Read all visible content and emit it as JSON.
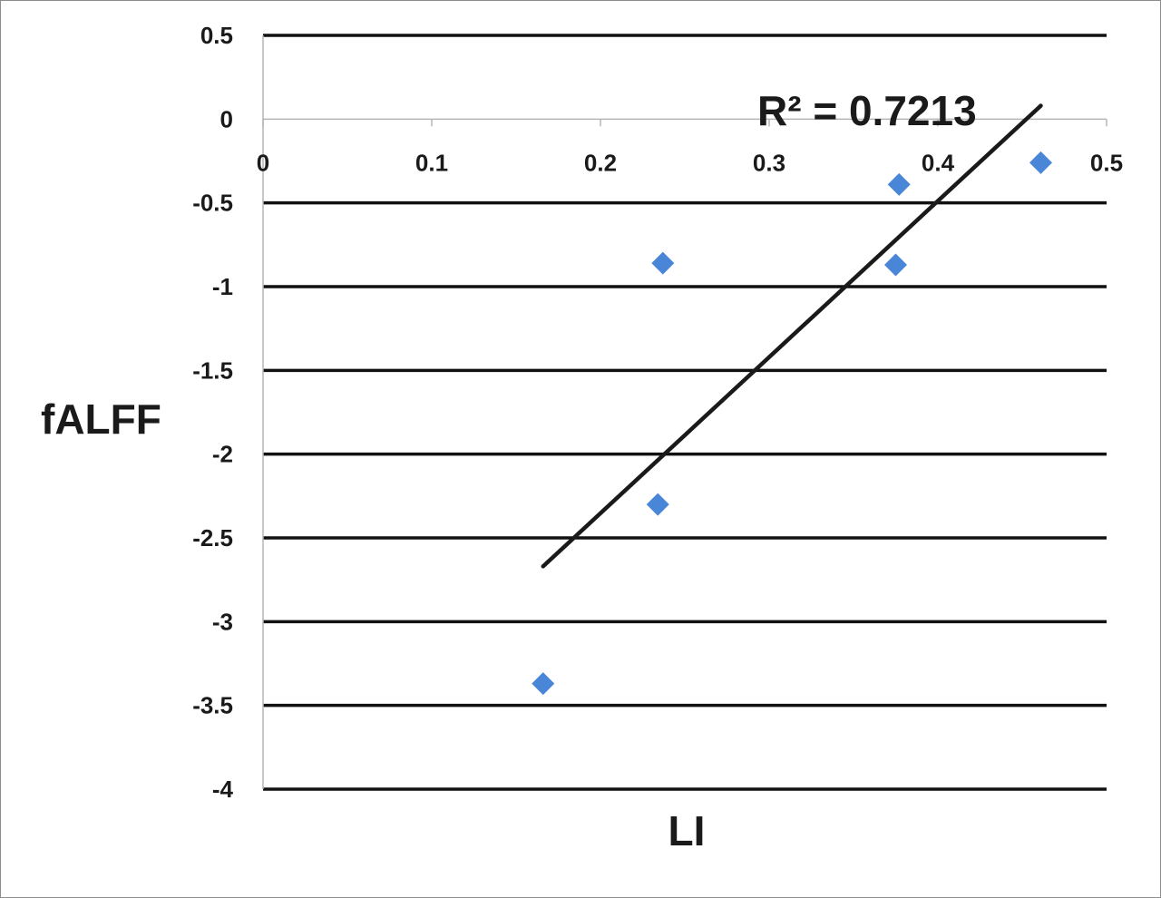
{
  "chart_data": {
    "type": "scatter",
    "xlabel": "LI",
    "ylabel": "fALFF",
    "xlim": [
      0,
      0.5
    ],
    "ylim": [
      -4,
      0.5
    ],
    "x_ticks": [
      0,
      0.1,
      0.2,
      0.3,
      0.4,
      0.5
    ],
    "x_tick_labels": [
      "0",
      "0.1",
      "0.2",
      "0.3",
      "0.4",
      "0.5"
    ],
    "y_ticks": [
      0.5,
      0,
      -0.5,
      -1,
      -1.5,
      -2,
      -2.5,
      -3,
      -3.5,
      -4
    ],
    "y_tick_labels": [
      "0.5",
      "0",
      "-0.5",
      "-1",
      "-1.5",
      "-2",
      "-2.5",
      "-3",
      "-3.5",
      "-4"
    ],
    "grid": "horizontal",
    "x_axis_position": "y=0",
    "series": [
      {
        "marker": "diamond",
        "color": "#4a86d8",
        "x": [
          0.166,
          0.237,
          0.234,
          0.377,
          0.375,
          0.461
        ],
        "y": [
          -3.37,
          -0.86,
          -2.3,
          -0.39,
          -0.87,
          -0.26
        ]
      }
    ],
    "trendline": {
      "type": "linear",
      "color": "#1a1a1a",
      "x_range": [
        0.166,
        0.461
      ],
      "y_start": -2.67,
      "y_end": 0.08,
      "r2_label": "R² = 0.7213"
    }
  }
}
